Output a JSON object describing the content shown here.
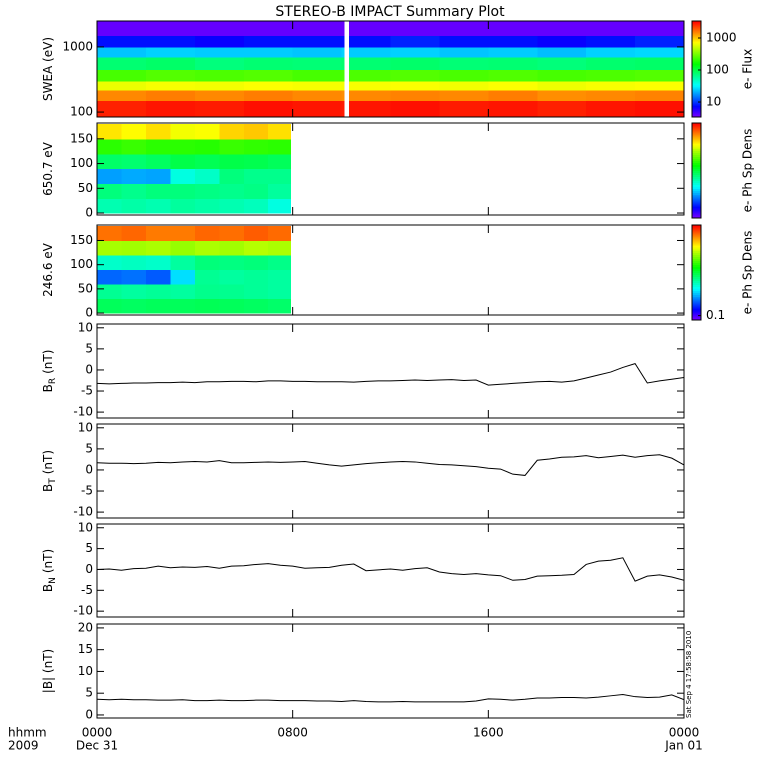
{
  "chart_data": [
    {
      "type": "heatmap",
      "title": "STEREO-B IMPACT Summary Plot",
      "ylabel": "SWEA (eV)",
      "ylog": true,
      "ylim": [
        84,
        2500
      ],
      "yticks": [
        100,
        1000
      ],
      "xbins": [
        0,
        2,
        4,
        6,
        8,
        10,
        10.1,
        10.3,
        12,
        14,
        16,
        18,
        20,
        22,
        24
      ],
      "ybins": [
        84,
        150,
        220,
        300,
        450,
        700,
        1000,
        1500,
        2500
      ],
      "z": [
        [
          2800,
          1500,
          650,
          240,
          80,
          24,
          8,
          4
        ],
        [
          3000,
          1600,
          700,
          260,
          85,
          26,
          8,
          4
        ],
        [
          2900,
          1500,
          680,
          250,
          75,
          25,
          7,
          4
        ],
        [
          3100,
          1600,
          720,
          260,
          80,
          25,
          8,
          4
        ],
        [
          3000,
          1500,
          700,
          240,
          78,
          24,
          8,
          4
        ],
        [
          2900,
          1450,
          690,
          250,
          82,
          26,
          8,
          4
        ],
        null,
        [
          3000,
          1500,
          700,
          250,
          80,
          25,
          8,
          4
        ],
        [
          3100,
          1550,
          710,
          260,
          84,
          26,
          9,
          4
        ],
        [
          2900,
          1500,
          680,
          245,
          78,
          24,
          8,
          4
        ],
        [
          3000,
          1600,
          720,
          255,
          80,
          25,
          8,
          4
        ],
        [
          2800,
          1450,
          660,
          240,
          76,
          23,
          7,
          4
        ],
        [
          3000,
          1500,
          700,
          250,
          82,
          26,
          8,
          4
        ],
        [
          3100,
          1550,
          720,
          260,
          85,
          27,
          9,
          4
        ]
      ],
      "zlog": true,
      "zlim": [
        3.4,
        3400
      ],
      "zticks": [
        10,
        100,
        1000
      ],
      "zlabel": "e- Flux"
    },
    {
      "type": "heatmap",
      "ylabel": "650.7 eV",
      "ylim": [
        -4,
        182
      ],
      "yticks": [
        0,
        50,
        100,
        150
      ],
      "xbins": [
        0,
        1,
        2,
        3,
        4,
        5,
        6,
        7,
        7.9
      ],
      "ybins": [
        0,
        30,
        60,
        90,
        120,
        150,
        180
      ],
      "z": [
        [
          0.016,
          0.022,
          0.0056,
          0.025,
          0.06,
          0.25
        ],
        [
          0.017,
          0.02,
          0.006,
          0.024,
          0.065,
          0.22
        ],
        [
          0.016,
          0.022,
          0.0058,
          0.026,
          0.06,
          0.26
        ],
        [
          0.018,
          0.022,
          0.012,
          0.03,
          0.06,
          0.2
        ],
        [
          0.017,
          0.021,
          0.014,
          0.028,
          0.058,
          0.21
        ],
        [
          0.016,
          0.02,
          0.022,
          0.03,
          0.065,
          0.28
        ],
        [
          0.015,
          0.021,
          0.02,
          0.029,
          0.062,
          0.3
        ],
        [
          0.012,
          0.018,
          0.02,
          0.027,
          0.06,
          0.26
        ]
      ],
      "zlog": true,
      "zlim": [
        0.001,
        1
      ],
      "zlabel": "e- Ph Sp Dens"
    },
    {
      "type": "heatmap",
      "ylabel": "246.6 eV",
      "ylim": [
        -4,
        182
      ],
      "yticks": [
        0,
        50,
        100,
        150
      ],
      "xbins": [
        0,
        1,
        2,
        3,
        4,
        5,
        6,
        7,
        7.9
      ],
      "ybins": [
        0,
        30,
        60,
        90,
        120,
        150,
        180
      ],
      "z": [
        [
          0.8,
          0.63,
          0.21,
          0.5,
          2.35,
          6.2
        ],
        [
          0.78,
          0.6,
          0.22,
          0.52,
          2.3,
          6.5
        ],
        [
          0.8,
          0.62,
          0.2,
          0.5,
          2.4,
          6.0
        ],
        [
          0.8,
          0.6,
          0.35,
          0.6,
          2.2,
          6.0
        ],
        [
          0.82,
          0.65,
          0.63,
          0.7,
          2.4,
          6.5
        ],
        [
          0.8,
          0.64,
          0.6,
          0.68,
          2.3,
          6.3
        ],
        [
          0.78,
          0.62,
          0.62,
          0.7,
          2.5,
          6.8
        ],
        [
          0.75,
          0.6,
          0.6,
          0.66,
          2.4,
          6.4
        ]
      ],
      "zlog": true,
      "zlim": [
        0.08,
        10
      ],
      "zticks": [
        0.1
      ],
      "zlabel": "e- Ph Sp Dens"
    },
    {
      "type": "line",
      "ylabel": "B",
      "ylabel_sub": "R",
      "ylabel_unit": "(nT)",
      "ylim": [
        -11.4,
        10.9
      ],
      "yticks": [
        -10,
        -5,
        0,
        5,
        10
      ],
      "color": "#000000",
      "x": [
        0,
        0.5,
        1,
        1.5,
        2,
        2.5,
        3,
        3.5,
        4,
        4.5,
        5,
        5.5,
        6,
        6.5,
        7,
        7.5,
        8,
        8.5,
        9,
        9.5,
        10,
        10.5,
        11,
        11.5,
        12,
        12.5,
        13,
        13.5,
        14,
        14.5,
        15,
        15.5,
        16,
        16.5,
        17,
        17.5,
        18,
        18.5,
        19,
        19.5,
        20,
        20.5,
        21,
        21.5,
        22,
        22.5,
        23,
        23.5,
        24
      ],
      "values": [
        -3.2,
        -3.3,
        -3.2,
        -3.1,
        -3.1,
        -3.0,
        -3.0,
        -2.9,
        -3.0,
        -2.8,
        -2.8,
        -2.7,
        -2.7,
        -2.8,
        -2.6,
        -2.6,
        -2.7,
        -2.7,
        -2.8,
        -2.8,
        -2.8,
        -2.9,
        -2.7,
        -2.6,
        -2.6,
        -2.5,
        -2.4,
        -2.5,
        -2.4,
        -2.3,
        -2.5,
        -2.4,
        -3.6,
        -3.4,
        -3.2,
        -3.0,
        -2.8,
        -2.7,
        -2.9,
        -2.6,
        -1.9,
        -1.2,
        -0.5,
        0.6,
        1.5,
        -3.1,
        -2.6,
        -2.2,
        -1.8
      ]
    },
    {
      "type": "line",
      "ylabel": "B",
      "ylabel_sub": "T",
      "ylabel_unit": "(nT)",
      "ylim": [
        -11.4,
        10.9
      ],
      "yticks": [
        -10,
        -5,
        0,
        5,
        10
      ],
      "color": "#000000",
      "x": [
        0,
        0.5,
        1,
        1.5,
        2,
        2.5,
        3,
        3.5,
        4,
        4.5,
        5,
        5.5,
        6,
        6.5,
        7,
        7.5,
        8,
        8.5,
        9,
        9.5,
        10,
        10.5,
        11,
        11.5,
        12,
        12.5,
        13,
        13.5,
        14,
        14.5,
        15,
        15.5,
        16,
        16.5,
        17,
        17.5,
        18,
        18.5,
        19,
        19.5,
        20,
        20.5,
        21,
        21.5,
        22,
        22.5,
        23,
        23.5,
        24
      ],
      "values": [
        1.7,
        1.6,
        1.6,
        1.5,
        1.6,
        1.8,
        1.7,
        1.9,
        2.0,
        1.9,
        2.2,
        1.7,
        1.7,
        1.8,
        1.9,
        1.8,
        1.9,
        2.0,
        1.6,
        1.2,
        0.9,
        1.2,
        1.5,
        1.7,
        1.9,
        2.0,
        1.9,
        1.6,
        1.3,
        1.2,
        1.0,
        0.8,
        0.4,
        0.2,
        -1.0,
        -1.3,
        2.3,
        2.6,
        3.0,
        3.1,
        3.4,
        2.9,
        3.2,
        3.5,
        3.0,
        3.4,
        3.6,
        2.8,
        1.2
      ]
    },
    {
      "type": "line",
      "ylabel": "B",
      "ylabel_sub": "N",
      "ylabel_unit": "(nT)",
      "ylim": [
        -11.4,
        10.9
      ],
      "yticks": [
        -10,
        -5,
        0,
        5,
        10
      ],
      "color": "#000000",
      "x": [
        0,
        0.5,
        1,
        1.5,
        2,
        2.5,
        3,
        3.5,
        4,
        4.5,
        5,
        5.5,
        6,
        6.5,
        7,
        7.5,
        8,
        8.5,
        9,
        9.5,
        10,
        10.5,
        11,
        11.5,
        12,
        12.5,
        13,
        13.5,
        14,
        14.5,
        15,
        15.5,
        16,
        16.5,
        17,
        17.5,
        18,
        18.5,
        19,
        19.5,
        20,
        20.5,
        21,
        21.5,
        22,
        22.5,
        23,
        23.5,
        24
      ],
      "values": [
        0.0,
        0.1,
        -0.2,
        0.2,
        0.3,
        0.8,
        0.4,
        0.6,
        0.5,
        0.7,
        0.3,
        0.8,
        0.9,
        1.2,
        1.4,
        1.0,
        0.8,
        0.3,
        0.4,
        0.5,
        1.0,
        1.3,
        -0.3,
        -0.1,
        0.1,
        -0.2,
        0.2,
        0.4,
        -0.6,
        -1.0,
        -1.2,
        -1.0,
        -1.3,
        -1.5,
        -2.6,
        -2.4,
        -1.6,
        -1.5,
        -1.4,
        -1.2,
        1.2,
        2.0,
        2.2,
        2.8,
        -2.8,
        -1.6,
        -1.3,
        -1.8,
        -2.6
      ]
    },
    {
      "type": "line",
      "ylabel": "|B| (nT)",
      "ylim": [
        -0.7,
        20.9
      ],
      "yticks": [
        0,
        5,
        10,
        15,
        20
      ],
      "color": "#000000",
      "x": [
        0,
        0.5,
        1,
        1.5,
        2,
        2.5,
        3,
        3.5,
        4,
        4.5,
        5,
        5.5,
        6,
        6.5,
        7,
        7.5,
        8,
        8.5,
        9,
        9.5,
        10,
        10.5,
        11,
        11.5,
        12,
        12.5,
        13,
        13.5,
        14,
        14.5,
        15,
        15.5,
        16,
        16.5,
        17,
        17.5,
        18,
        18.5,
        19,
        19.5,
        20,
        20.5,
        21,
        21.5,
        22,
        22.5,
        23,
        23.5,
        24
      ],
      "values": [
        3.6,
        3.5,
        3.6,
        3.5,
        3.5,
        3.4,
        3.4,
        3.5,
        3.3,
        3.3,
        3.4,
        3.3,
        3.3,
        3.4,
        3.4,
        3.3,
        3.3,
        3.3,
        3.2,
        3.2,
        3.1,
        3.3,
        3.1,
        3.0,
        3.0,
        3.1,
        3.0,
        3.0,
        3.0,
        3.0,
        3.0,
        3.2,
        3.7,
        3.6,
        3.4,
        3.6,
        3.9,
        3.9,
        4.0,
        4.0,
        3.9,
        4.1,
        4.4,
        4.7,
        4.2,
        4.0,
        4.1,
        4.6,
        3.5
      ]
    }
  ],
  "x_axis": {
    "xlim": [
      0,
      24
    ],
    "xticks": [
      {
        "value": 0,
        "label": "0000"
      },
      {
        "value": 8,
        "label": "0800"
      },
      {
        "value": 16,
        "label": "1600"
      },
      {
        "value": 24,
        "label": "0000"
      }
    ],
    "dates": [
      "Dec 31",
      null,
      null,
      "Jan 01"
    ],
    "label": "hhmm",
    "year": "2009"
  },
  "timestamp": "Sat Sep  4 17:58:58 2010"
}
